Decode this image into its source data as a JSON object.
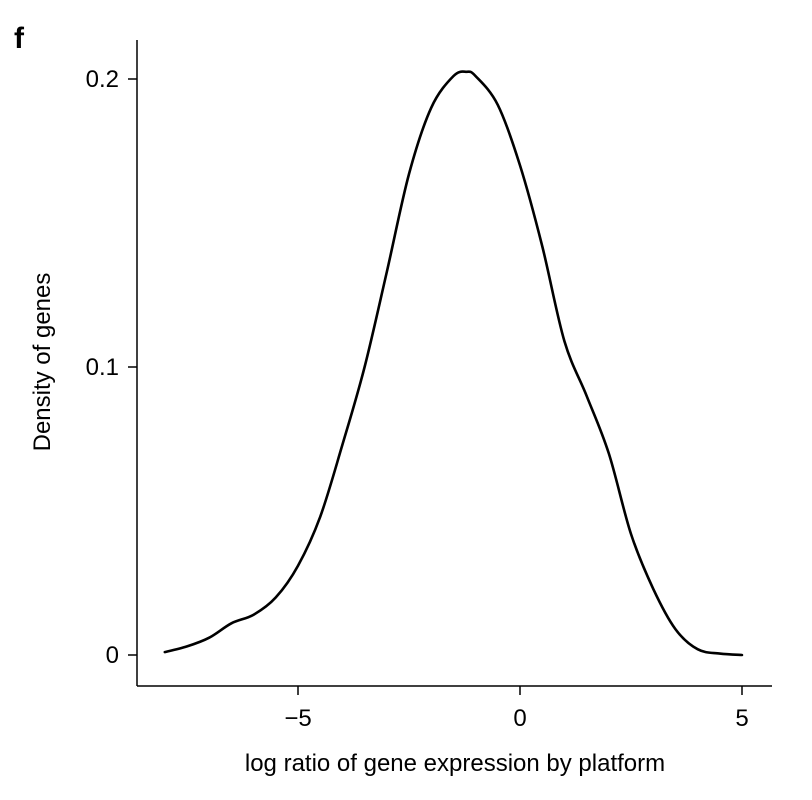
{
  "panel_label": "f",
  "chart_data": {
    "type": "line",
    "title": "",
    "xlabel": "log ratio of gene expression by platform",
    "ylabel": "Density of genes",
    "xlim": [
      -8.5,
      5.5
    ],
    "ylim": [
      -0.01,
      0.213
    ],
    "x_ticks": [
      -5,
      0,
      5
    ],
    "x_tick_labels": [
      "−5",
      "0",
      "5"
    ],
    "y_ticks": [
      0,
      0.1,
      0.2
    ],
    "y_tick_labels": [
      "0",
      "0.1",
      "0.2"
    ],
    "grid": false,
    "legend": "none",
    "line_color": "#000000",
    "series": [
      {
        "x": [
          -8.0,
          -7.5,
          -7.0,
          -6.5,
          -6.0,
          -5.5,
          -5.0,
          -4.5,
          -4.0,
          -3.5,
          -3.0,
          -2.5,
          -2.0,
          -1.5,
          -1.2,
          -1.0,
          -0.5,
          0.0,
          0.5,
          1.0,
          1.5,
          2.0,
          2.5,
          3.0,
          3.5,
          4.0,
          4.5,
          5.0
        ],
        "y": [
          0.001,
          0.003,
          0.006,
          0.011,
          0.014,
          0.02,
          0.031,
          0.048,
          0.073,
          0.1,
          0.133,
          0.167,
          0.19,
          0.201,
          0.2025,
          0.201,
          0.191,
          0.17,
          0.142,
          0.109,
          0.09,
          0.07,
          0.042,
          0.023,
          0.009,
          0.002,
          0.0005,
          0.0
        ]
      }
    ]
  }
}
